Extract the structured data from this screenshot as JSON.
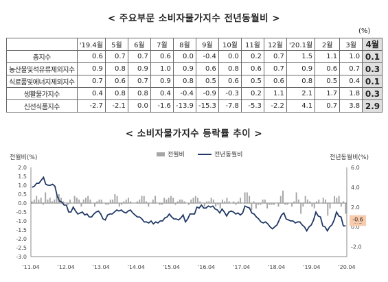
{
  "table_title": "< 주요부문 소비자물가지수 전년동월비 >",
  "unit": "(%)",
  "columns": [
    "'19.4월",
    "5월",
    "6월",
    "7월",
    "8월",
    "9월",
    "10월",
    "11월",
    "12월",
    "'20.1월",
    "2월",
    "3월",
    "4월"
  ],
  "rows": [
    {
      "label": "총지수",
      "values": [
        "0.6",
        "0.7",
        "0.7",
        "0.6",
        "0.0",
        "-0.4",
        "0.0",
        "0.2",
        "0.7",
        "1.5",
        "1.1",
        "1.0",
        "0.1"
      ]
    },
    {
      "label": "농산물및석유류제외지수",
      "values": [
        "0.9",
        "0.8",
        "0.9",
        "1.0",
        "0.9",
        "0.6",
        "0.8",
        "0.6",
        "0.7",
        "0.9",
        "0.6",
        "0.7",
        "0.3"
      ]
    },
    {
      "label": "식료품및에너지제외지수",
      "values": [
        "0.7",
        "0.6",
        "0.7",
        "0.9",
        "0.8",
        "0.5",
        "0.6",
        "0.5",
        "0.6",
        "0.8",
        "0.5",
        "0.4",
        "0.1"
      ]
    },
    {
      "label": "생활물가지수",
      "values": [
        "0.4",
        "0.8",
        "0.8",
        "0.4",
        "-0.4",
        "-0.9",
        "-0.3",
        "0.2",
        "1.1",
        "2.1",
        "1.7",
        "1.8",
        "0.3"
      ]
    },
    {
      "label": "신선식품지수",
      "values": [
        "-2.7",
        "-2.1",
        "0.0",
        "-1.6",
        "-13.9",
        "-15.3",
        "-7.8",
        "-5.3",
        "-2.2",
        "4.1",
        "0.7",
        "3.8",
        "2.9"
      ]
    }
  ],
  "chart_title": "< 소비자물가지수 등락률 추이 >",
  "chart_data": {
    "type": "bar+line",
    "left_axis_label": "전월비(%)",
    "right_axis_label": "전년동월비(%)",
    "left_ylim": [
      -3.0,
      2.0
    ],
    "left_ticks": [
      "2.0",
      "1.5",
      "1.0",
      "0.5",
      "0.0",
      "-0.5",
      "-1.0",
      "-1.5",
      "-2.0",
      "-2.5",
      "-3.0"
    ],
    "right_ylim": [
      -3.0,
      6.0
    ],
    "right_ticks": [
      "6.0",
      "4.0",
      "2.0",
      "0.0",
      "-2.0"
    ],
    "x_ticks": [
      "'11.04",
      "'12.04",
      "'13.04",
      "'14.04",
      "'15.04",
      "'16.04",
      "'17.04",
      "'18.04",
      "'19.04",
      "'20.04"
    ],
    "legend": [
      "전월비",
      "전년동월비"
    ],
    "annotations": [
      "0.1",
      "-0.6"
    ],
    "colors": {
      "bar": "#a6a6a6",
      "line": "#1f3864",
      "annotation_bg": "#f8cbad",
      "zero_line": "#444444"
    },
    "series": [
      {
        "name": "전월비",
        "type": "bar",
        "axis": "left",
        "values": [
          0.1,
          0.2,
          0.4,
          0.2,
          0.3,
          -0.1,
          0.6,
          0.2,
          0.3,
          0.1,
          0.2,
          0.4,
          0.5,
          0.3,
          0.1,
          0.0,
          -0.1,
          0.2,
          0.0,
          0.4,
          0.3,
          0.2,
          -0.2,
          0.2,
          0.3,
          0.4,
          0.2,
          0.0,
          -0.2,
          0.1,
          0.2,
          0.2,
          0.0,
          -0.1,
          -0.1,
          0.2,
          0.2,
          0.5,
          0.4,
          -0.2,
          -0.1,
          0.1,
          0.2,
          0.3,
          0.1,
          0.0,
          0.0,
          0.1,
          0.2,
          0.4,
          0.4,
          0.1,
          -0.2,
          0.0,
          0.2,
          0.4,
          0.0,
          -0.1,
          -0.1,
          0.3,
          0.2,
          0.3,
          0.4,
          0.3,
          -0.1,
          0.1,
          0.2,
          0.2,
          0.1,
          0.0,
          -0.1,
          0.2,
          0.3,
          0.4,
          0.3,
          0.1,
          0.0,
          -0.2,
          0.1,
          0.1,
          0.3,
          0.2,
          -0.2,
          -0.1,
          -0.3,
          0.2,
          0.1,
          0.3,
          0.1,
          0.0,
          0.1,
          -0.1,
          0.1,
          0.3,
          0.0,
          0.6,
          0.6,
          0.4,
          -0.4,
          0.1,
          -0.3,
          -0.1,
          -0.1,
          0.2,
          0.2,
          -0.3,
          -0.1,
          -0.1,
          -0.1,
          0.0,
          -0.2,
          0.4,
          0.7,
          -0.1,
          -0.1,
          0.0,
          -0.2,
          0.1,
          0.6,
          0.2,
          -0.6,
          -0.2,
          0.4,
          0.2,
          0.1,
          -0.2,
          -0.3,
          0.1,
          0.2,
          0.0,
          0.3,
          0.2,
          -0.7,
          -0.3,
          0.0,
          0.4,
          0.3,
          0.4,
          -0.2,
          0.1,
          -0.6
        ],
        "last_value": -0.6
      },
      {
        "name": "전년동월비",
        "type": "line",
        "axis": "right",
        "values": [
          4.0,
          4.1,
          4.4,
          4.4,
          4.7,
          5.0,
          4.3,
          4.2,
          4.2,
          4.3,
          4.1,
          3.1,
          2.6,
          2.5,
          2.2,
          2.2,
          1.5,
          1.5,
          2.0,
          1.6,
          1.3,
          1.4,
          1.5,
          1.2,
          1.3,
          1.0,
          1.0,
          1.3,
          1.5,
          1.6,
          1.3,
          0.8,
          0.7,
          1.2,
          1.3,
          1.3,
          1.5,
          1.7,
          1.6,
          1.7,
          1.5,
          1.4,
          1.6,
          1.7,
          1.4,
          1.2,
          1.0,
          1.0,
          0.8,
          0.5,
          0.5,
          0.4,
          0.6,
          0.3,
          0.5,
          0.4,
          0.6,
          0.6,
          0.9,
          1.0,
          1.3,
          1.0,
          0.8,
          0.8,
          0.7,
          0.9,
          1.2,
          0.5,
          0.8,
          1.3,
          1.3,
          1.3,
          2.0,
          1.9,
          2.2,
          1.9,
          1.9,
          2.1,
          2.0,
          2.1,
          1.8,
          1.7,
          1.4,
          1.8,
          1.5,
          1.1,
          1.5,
          1.6,
          1.5,
          1.3,
          1.4,
          1.2,
          1.4,
          2.1,
          2.0,
          1.9,
          1.4,
          1.3,
          1.0,
          0.8,
          0.5,
          0.4,
          0.5,
          0.3,
          0.0,
          -0.2,
          0.0,
          0.2,
          0.7,
          1.2,
          1.4,
          0.8,
          0.7,
          0.6,
          0.6,
          0.4,
          0.5,
          0.5,
          0.2,
          0.0,
          -0.4,
          0.0,
          0.2,
          0.7,
          1.5,
          1.1,
          1.0,
          0.1,
          0.0,
          -0.4,
          0.0,
          0.2,
          0.7,
          1.5,
          1.1,
          1.0,
          0.1,
          0.1
        ],
        "last_value": 0.1
      }
    ]
  }
}
